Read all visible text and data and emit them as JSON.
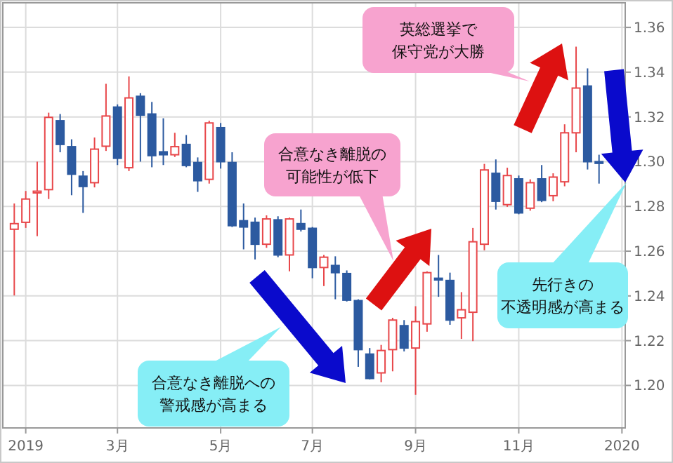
{
  "chart_data": {
    "type": "candlestick",
    "x": [
      "2018-12-31",
      "2019-01-07",
      "2019-01-14",
      "2019-01-21",
      "2019-01-28",
      "2019-02-04",
      "2019-02-11",
      "2019-02-18",
      "2019-02-25",
      "2019-03-04",
      "2019-03-11",
      "2019-03-18",
      "2019-03-25",
      "2019-04-01",
      "2019-04-08",
      "2019-04-15",
      "2019-04-22",
      "2019-04-29",
      "2019-05-06",
      "2019-05-13",
      "2019-05-20",
      "2019-05-27",
      "2019-06-03",
      "2019-06-10",
      "2019-06-17",
      "2019-06-24",
      "2019-07-01",
      "2019-07-08",
      "2019-07-15",
      "2019-07-22",
      "2019-07-29",
      "2019-08-05",
      "2019-08-12",
      "2019-08-19",
      "2019-08-26",
      "2019-09-02",
      "2019-09-09",
      "2019-09-16",
      "2019-09-23",
      "2019-09-30",
      "2019-10-07",
      "2019-10-14",
      "2019-10-21",
      "2019-10-28",
      "2019-11-04",
      "2019-11-11",
      "2019-11-18",
      "2019-11-25",
      "2019-12-02",
      "2019-12-09",
      "2019-12-16",
      "2019-12-23"
    ],
    "ohlc": [
      [
        1.2698,
        1.2813,
        1.2402,
        1.2723
      ],
      [
        1.2729,
        1.2869,
        1.2704,
        1.2833
      ],
      [
        1.2862,
        1.3,
        1.2667,
        1.2868
      ],
      [
        1.2875,
        1.3219,
        1.2833,
        1.3198
      ],
      [
        1.3183,
        1.3213,
        1.3042,
        1.3077
      ],
      [
        1.3067,
        1.31,
        1.285,
        1.2944
      ],
      [
        1.2935,
        1.2958,
        1.2771,
        1.2889
      ],
      [
        1.2906,
        1.3108,
        1.2885,
        1.3056
      ],
      [
        1.3069,
        1.3348,
        1.3048,
        1.3204
      ],
      [
        1.3244,
        1.3256,
        1.2985,
        1.3015
      ],
      [
        1.2973,
        1.3381,
        1.2958,
        1.3285
      ],
      [
        1.3292,
        1.3306,
        1.3,
        1.3208
      ],
      [
        1.3213,
        1.3267,
        1.2975,
        1.3027
      ],
      [
        1.3044,
        1.3194,
        1.2985,
        1.3031
      ],
      [
        1.3031,
        1.3129,
        1.3021,
        1.3067
      ],
      [
        1.3077,
        1.3119,
        1.2975,
        1.2983
      ],
      [
        1.2996,
        1.3019,
        1.2865,
        1.2915
      ],
      [
        1.2921,
        1.3183,
        1.2902,
        1.3173
      ],
      [
        1.3152,
        1.3173,
        1.2969,
        1.3
      ],
      [
        1.2996,
        1.3042,
        1.2708,
        1.2714
      ],
      [
        1.2736,
        1.2813,
        1.2608,
        1.2708
      ],
      [
        1.2729,
        1.275,
        1.2563,
        1.2631
      ],
      [
        1.2631,
        1.276,
        1.2615,
        1.2744
      ],
      [
        1.274,
        1.2756,
        1.2573,
        1.2583
      ],
      [
        1.2583,
        1.275,
        1.251,
        1.2744
      ],
      [
        1.2723,
        1.2786,
        1.2688,
        1.2698
      ],
      [
        1.2702,
        1.2708,
        1.2479,
        1.2527
      ],
      [
        1.2527,
        1.2583,
        1.2444,
        1.2573
      ],
      [
        1.2536,
        1.2577,
        1.2385,
        1.2504
      ],
      [
        1.25,
        1.2514,
        1.2375,
        1.2381
      ],
      [
        1.2379,
        1.2385,
        1.2083,
        1.216
      ],
      [
        1.214,
        1.2167,
        1.2027,
        1.2031
      ],
      [
        1.2056,
        1.2181,
        1.2014,
        1.2156
      ],
      [
        1.216,
        1.2302,
        1.2063,
        1.2292
      ],
      [
        1.2267,
        1.2292,
        1.2152,
        1.2167
      ],
      [
        1.2167,
        1.2354,
        1.1958,
        1.2285
      ],
      [
        1.2275,
        1.251,
        1.224,
        1.2504
      ],
      [
        1.2479,
        1.2583,
        1.2396,
        1.2473
      ],
      [
        1.2469,
        1.2504,
        1.2271,
        1.2292
      ],
      [
        1.2302,
        1.2417,
        1.2208,
        1.2338
      ],
      [
        1.2327,
        1.2704,
        1.2198,
        1.2642
      ],
      [
        1.2631,
        1.299,
        1.2604,
        1.2963
      ],
      [
        1.2948,
        1.301,
        1.2786,
        1.2823
      ],
      [
        1.2808,
        1.2973,
        1.2798,
        1.2938
      ],
      [
        1.2923,
        1.2938,
        1.2765,
        1.2771
      ],
      [
        1.2792,
        1.2921,
        1.2781,
        1.2906
      ],
      [
        1.2923,
        1.2985,
        1.2819,
        1.2827
      ],
      [
        1.2848,
        1.2948,
        1.2823,
        1.2931
      ],
      [
        1.291,
        1.3167,
        1.289,
        1.3129
      ],
      [
        1.3129,
        1.3514,
        1.3042,
        1.3329
      ],
      [
        1.3338,
        1.3417,
        1.2965,
        1.3
      ],
      [
        1.3,
        1.3031,
        1.2902,
        1.2994
      ]
    ],
    "colors": [
      "#e8474a",
      "#e8474a",
      "#e8474a",
      "#e8474a",
      "#2c5aa0",
      "#2c5aa0",
      "#2c5aa0",
      "#e8474a",
      "#e8474a",
      "#2c5aa0",
      "#e8474a",
      "#2c5aa0",
      "#2c5aa0",
      "#2c5aa0",
      "#e8474a",
      "#2c5aa0",
      "#2c5aa0",
      "#e8474a",
      "#2c5aa0",
      "#2c5aa0",
      "#2c5aa0",
      "#2c5aa0",
      "#e8474a",
      "#2c5aa0",
      "#e8474a",
      "#2c5aa0",
      "#2c5aa0",
      "#e8474a",
      "#2c5aa0",
      "#2c5aa0",
      "#2c5aa0",
      "#2c5aa0",
      "#e8474a",
      "#e8474a",
      "#2c5aa0",
      "#e8474a",
      "#e8474a",
      "#2c5aa0",
      "#2c5aa0",
      "#e8474a",
      "#e8474a",
      "#e8474a",
      "#2c5aa0",
      "#e8474a",
      "#2c5aa0",
      "#e8474a",
      "#2c5aa0",
      "#e8474a",
      "#e8474a",
      "#e8474a",
      "#2c5aa0",
      "#2c5aa0"
    ],
    "xlim": [
      "2018-12-24",
      "2020-01-08"
    ],
    "xticks": [
      {
        "value": "2019-01-07",
        "label": "2019"
      },
      {
        "value": "2019-03-04",
        "label": "3月"
      },
      {
        "value": "2019-05-06",
        "label": "5月"
      },
      {
        "value": "2019-07-01",
        "label": "7月"
      },
      {
        "value": "2019-09-02",
        "label": "9月"
      },
      {
        "value": "2019-11-04",
        "label": "11月"
      },
      {
        "value": "2020-01-06",
        "label": "2020"
      }
    ],
    "ylim": [
      1.181,
      1.371
    ],
    "yticks": [
      {
        "value": 1.2,
        "label": "1.20"
      },
      {
        "value": 1.22,
        "label": "1.22"
      },
      {
        "value": 1.24,
        "label": "1.24"
      },
      {
        "value": 1.26,
        "label": "1.26"
      },
      {
        "value": 1.28,
        "label": "1.28"
      },
      {
        "value": 1.3,
        "label": "1.30"
      },
      {
        "value": 1.32,
        "label": "1.32"
      },
      {
        "value": 1.34,
        "label": "1.34"
      },
      {
        "value": 1.36,
        "label": "1.36"
      }
    ],
    "grid": true,
    "annotations": [
      "英総選挙で保守党が大勝",
      "合意なき離脱の可能性が低下",
      "合意なき離脱への警戒感が高まる",
      "先行きの不透明感が高まる"
    ]
  }
}
